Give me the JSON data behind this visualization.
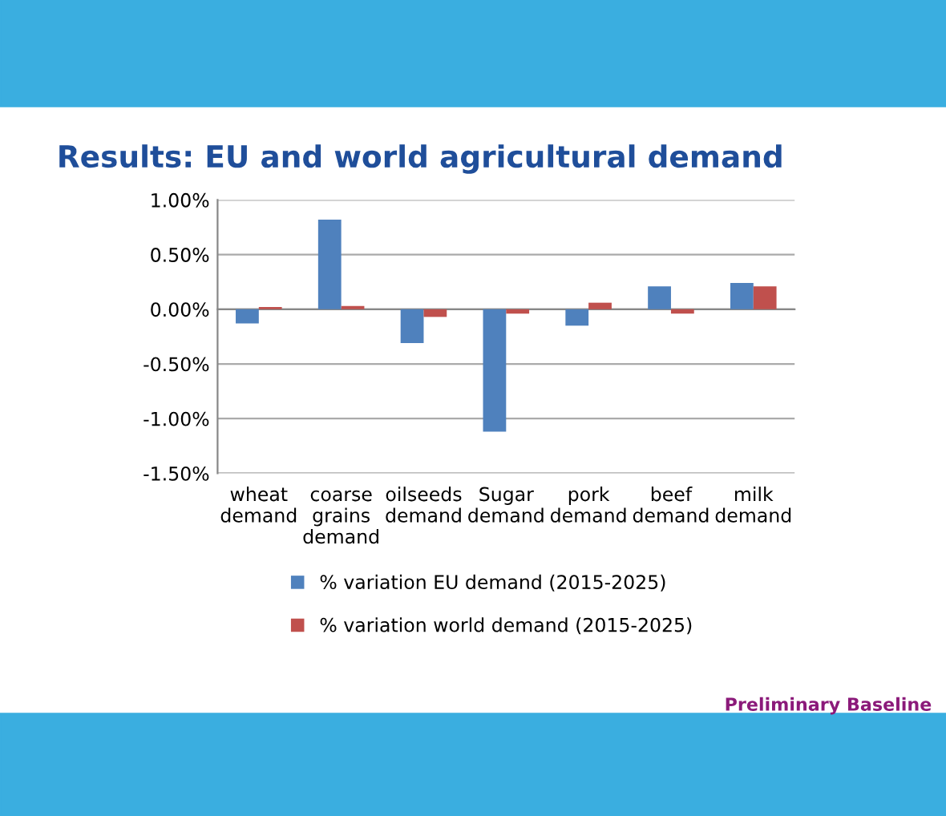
{
  "chart_data": {
    "type": "bar",
    "title": "Results: EU and world agricultural demand",
    "categories": [
      "wheat\ndemand",
      "coarse\ngrains\ndemand",
      "oilseeds\ndemand",
      "Sugar\ndemand",
      "pork\ndemand",
      "beef\ndemand",
      "milk\ndemand"
    ],
    "series": [
      {
        "name": "% variation EU demand (2015-2025)",
        "color": "#4f81bd",
        "values": [
          -0.13,
          0.82,
          -0.31,
          -1.12,
          -0.15,
          0.21,
          0.24
        ]
      },
      {
        "name": "% variation world demand (2015-2025)",
        "color": "#c0504d",
        "values": [
          0.02,
          0.03,
          -0.07,
          -0.04,
          0.06,
          -0.04,
          0.21
        ]
      }
    ],
    "ylim": [
      -1.5,
      1.0
    ],
    "yticks": [
      {
        "value": -1.5,
        "label": "-1.50%"
      },
      {
        "value": -1.0,
        "label": "-1.00%"
      },
      {
        "value": -0.5,
        "label": "-0.50%"
      },
      {
        "value": 0,
        "label": "0.00%"
      },
      {
        "value": 0.5,
        "label": "0.50%"
      },
      {
        "value": 1.0,
        "label": "1.00%"
      }
    ],
    "grid": "y",
    "legend": "bottom",
    "annotations": [
      "Preliminary Baseline"
    ]
  }
}
